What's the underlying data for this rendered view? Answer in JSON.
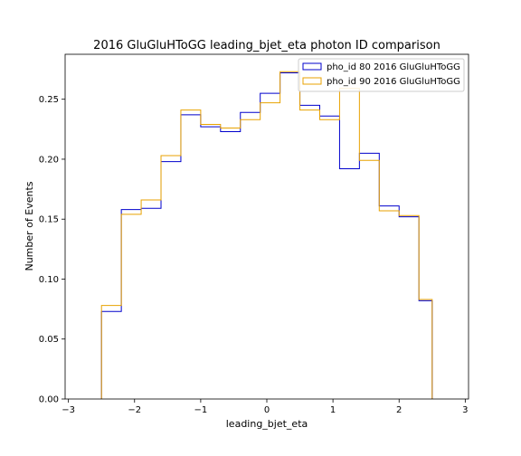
{
  "chart_data": {
    "type": "histogram-step",
    "title": "2016 GluGluHToGG leading_bjet_eta photon ID comparison",
    "xlabel": "leading_bjet_eta",
    "ylabel": "Number of Events",
    "xlim": [
      -3.05,
      3.05
    ],
    "ylim": [
      0,
      0.2875
    ],
    "xticks": [
      {
        "value": -3,
        "label": "−3"
      },
      {
        "value": -2,
        "label": "−2"
      },
      {
        "value": -1,
        "label": "−1"
      },
      {
        "value": 0,
        "label": "0"
      },
      {
        "value": 1,
        "label": "1"
      },
      {
        "value": 2,
        "label": "2"
      },
      {
        "value": 3,
        "label": "3"
      }
    ],
    "yticks": [
      {
        "value": 0.0,
        "label": "0.00"
      },
      {
        "value": 0.05,
        "label": "0.05"
      },
      {
        "value": 0.1,
        "label": "0.10"
      },
      {
        "value": 0.15,
        "label": "0.15"
      },
      {
        "value": 0.2,
        "label": "0.20"
      },
      {
        "value": 0.25,
        "label": "0.25"
      }
    ],
    "bin_edges": [
      -2.5,
      -2.2,
      -1.9,
      -1.6,
      -1.3,
      -1.0,
      -0.7,
      -0.4,
      -0.1,
      0.2,
      0.5,
      0.8,
      1.1,
      1.4,
      1.7,
      2.0,
      2.3,
      2.5
    ],
    "series": [
      {
        "name": "pho_id 80 2016 GluGluHToGG",
        "color": "#0000cc",
        "values": [
          0.073,
          0.158,
          0.159,
          0.198,
          0.237,
          0.227,
          0.223,
          0.239,
          0.255,
          0.272,
          0.245,
          0.236,
          0.192,
          0.205,
          0.161,
          0.152,
          0.082
        ]
      },
      {
        "name": "pho_id 90 2016 GluGluHToGG",
        "color": "#e8a200",
        "values": [
          0.078,
          0.154,
          0.166,
          0.203,
          0.241,
          0.229,
          0.226,
          0.233,
          0.247,
          0.273,
          0.241,
          0.233,
          0.259,
          0.199,
          0.157,
          0.153,
          0.083
        ]
      }
    ],
    "legend_position": "top-right",
    "grid": false
  }
}
